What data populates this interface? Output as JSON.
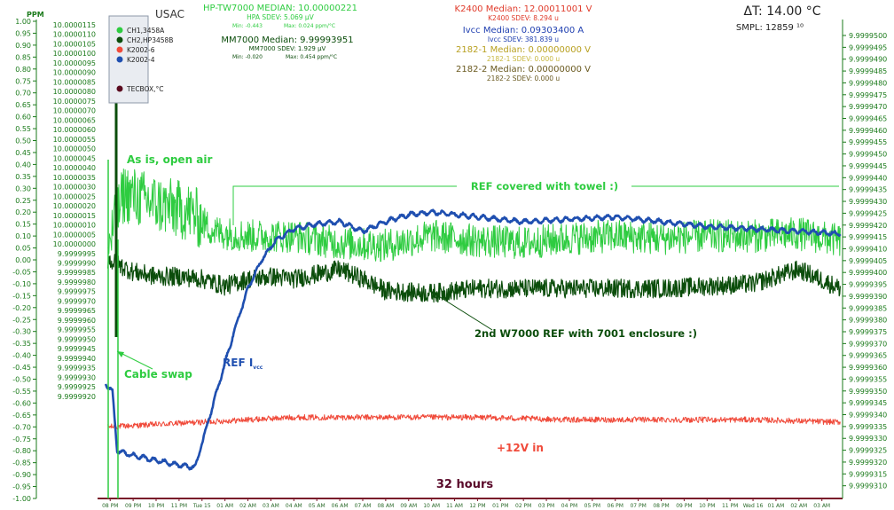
{
  "chart_data": {
    "type": "line",
    "x": {
      "ticks": [
        "08 PM",
        "09 PM",
        "10 PM",
        "11 PM",
        "Tue 15",
        "01 AM",
        "02 AM",
        "03 AM",
        "04 AM",
        "05 AM",
        "06 AM",
        "07 AM",
        "08 AM",
        "09 AM",
        "10 AM",
        "11 AM",
        "12 PM",
        "01 PM",
        "02 PM",
        "03 PM",
        "04 PM",
        "05 PM",
        "06 PM",
        "07 PM",
        "08 PM",
        "09 PM",
        "10 PM",
        "11 PM",
        "Wed 16",
        "01 AM",
        "02 AM",
        "03 AM"
      ],
      "range_hours": [
        -0.55,
        31.9
      ],
      "label": "32 hours"
    },
    "y_left": {
      "unit": "PPM",
      "ticks": [
        "1.00",
        "0.95",
        "0.90",
        "0.85",
        "0.80",
        "0.75",
        "0.70",
        "0.65",
        "0.60",
        "0.55",
        "0.50",
        "0.45",
        "0.40",
        "0.35",
        "0.30",
        "0.25",
        "0.20",
        "0.15",
        "0.10",
        "0.05",
        "0.00",
        "-0.05",
        "-0.10",
        "-0.15",
        "-0.20",
        "-0.25",
        "-0.30",
        "-0.35",
        "-0.40",
        "-0.45",
        "-0.50",
        "-0.55",
        "-0.60",
        "-0.65",
        "-0.70",
        "-0.75",
        "-0.80",
        "-0.85",
        "-0.90",
        "-0.95",
        "-1.00"
      ],
      "range": [
        -1.0,
        1.0
      ]
    },
    "y_mid": {
      "ticks": [
        "10.0000115",
        "10.0000110",
        "10.0000105",
        "10.0000100",
        "10.0000095",
        "10.0000090",
        "10.0000085",
        "10.0000080",
        "10.0000075",
        "10.0000070",
        "10.0000065",
        "10.0000060",
        "10.0000055",
        "10.0000050",
        "10.0000045",
        "10.0000040",
        "10.0000035",
        "10.0000030",
        "10.0000025",
        "10.0000020",
        "10.0000015",
        "10.0000010",
        "10.0000005",
        "10.0000000",
        "9.9999995",
        "9.9999990",
        "9.9999985",
        "9.9999980",
        "9.9999975",
        "9.9999970",
        "9.9999965",
        "9.9999960",
        "9.9999955",
        "9.9999950",
        "9.9999945",
        "9.9999940",
        "9.9999935",
        "9.9999930",
        "9.9999925",
        "9.9999920"
      ]
    },
    "y_right": {
      "ticks": [
        "9.9999500",
        "9.9999495",
        "9.9999490",
        "9.9999485",
        "9.9999480",
        "9.9999475",
        "9.9999470",
        "9.9999465",
        "9.9999460",
        "9.9999455",
        "9.9999450",
        "9.9999445",
        "9.9999440",
        "9.9999435",
        "9.9999430",
        "9.9999425",
        "9.9999420",
        "9.9999415",
        "9.9999410",
        "9.9999405",
        "9.9999400",
        "9.9999395",
        "9.9999390",
        "9.9999385",
        "9.9999380",
        "9.9999375",
        "9.9999370",
        "9.9999365",
        "9.9999360",
        "9.9999355",
        "9.9999350",
        "9.9999345",
        "9.9999340",
        "9.9999335",
        "9.9999330",
        "9.9999325",
        "9.9999320",
        "9.9999315",
        "9.9999310"
      ]
    },
    "series": [
      {
        "name": "CH1,3458A",
        "color": "#2ecc40",
        "ppm_points": [
          [
            -0.1,
            0.05
          ],
          [
            0.6,
            0.28
          ],
          [
            1.5,
            0.25
          ],
          [
            2.5,
            0.22
          ],
          [
            3.5,
            0.2
          ],
          [
            4.5,
            0.12
          ],
          [
            6,
            0.1
          ],
          [
            8,
            0.1
          ],
          [
            10,
            0.07
          ],
          [
            12,
            0.06
          ],
          [
            14,
            0.1
          ],
          [
            16,
            0.08
          ],
          [
            18,
            0.07
          ],
          [
            20,
            0.09
          ],
          [
            22,
            0.1
          ],
          [
            24,
            0.09
          ],
          [
            26,
            0.1
          ],
          [
            28,
            0.1
          ],
          [
            30,
            0.11
          ],
          [
            31.8,
            0.08
          ]
        ]
      },
      {
        "name": "CH2,HP3458B",
        "color": "#0b4d0b",
        "ppm_points": [
          [
            -0.1,
            0.0
          ],
          [
            1,
            -0.05
          ],
          [
            2,
            -0.07
          ],
          [
            3,
            -0.07
          ],
          [
            4,
            -0.08
          ],
          [
            5,
            -0.11
          ],
          [
            6,
            -0.08
          ],
          [
            7,
            -0.07
          ],
          [
            8,
            -0.08
          ],
          [
            10,
            -0.04
          ],
          [
            11,
            -0.08
          ],
          [
            12,
            -0.13
          ],
          [
            14,
            -0.14
          ],
          [
            16,
            -0.12
          ],
          [
            18,
            -0.12
          ],
          [
            20,
            -0.12
          ],
          [
            22,
            -0.12
          ],
          [
            24,
            -0.12
          ],
          [
            26,
            -0.11
          ],
          [
            28,
            -0.1
          ],
          [
            30,
            -0.04
          ],
          [
            31.8,
            -0.12
          ]
        ]
      },
      {
        "name": "K2002-6",
        "color": "#f04a3a",
        "ppm_points": [
          [
            -0.1,
            -0.7
          ],
          [
            4,
            -0.68
          ],
          [
            8,
            -0.66
          ],
          [
            12,
            -0.66
          ],
          [
            16,
            -0.66
          ],
          [
            20,
            -0.67
          ],
          [
            24,
            -0.67
          ],
          [
            28,
            -0.67
          ],
          [
            31.8,
            -0.68
          ]
        ]
      },
      {
        "name": "K2002-4",
        "color": "#1f4fb0",
        "ppm_points": [
          [
            -0.2,
            -0.52
          ],
          [
            0.1,
            -0.55
          ],
          [
            0.3,
            -0.8
          ],
          [
            1,
            -0.82
          ],
          [
            2,
            -0.84
          ],
          [
            3,
            -0.86
          ],
          [
            3.7,
            -0.87
          ],
          [
            4.2,
            -0.7
          ],
          [
            4.8,
            -0.5
          ],
          [
            5.4,
            -0.3
          ],
          [
            6,
            -0.12
          ],
          [
            6.6,
            0.0
          ],
          [
            7.2,
            0.08
          ],
          [
            8,
            0.13
          ],
          [
            9,
            0.15
          ],
          [
            10,
            0.16
          ],
          [
            11,
            0.12
          ],
          [
            12,
            0.16
          ],
          [
            13,
            0.19
          ],
          [
            14,
            0.2
          ],
          [
            15,
            0.19
          ],
          [
            16,
            0.18
          ],
          [
            18,
            0.16
          ],
          [
            20,
            0.17
          ],
          [
            22,
            0.18
          ],
          [
            24,
            0.16
          ],
          [
            26,
            0.14
          ],
          [
            28,
            0.13
          ],
          [
            30,
            0.12
          ],
          [
            31.8,
            0.11
          ]
        ]
      },
      {
        "name": "TECBOX,°C",
        "color": "#5a0a1e"
      }
    ]
  },
  "header": {
    "usac": "USAC",
    "hp_median": "HP-TW7000 MEDIAN: 10.00000221",
    "hp_sdev": "HPA SDEV: 5.069 µV",
    "hp_min": "Min: -0.443",
    "hp_max": "Max: 0.024 ppm/°C",
    "mm_median": "MM7000 Median: 9.99993951",
    "mm_sdev": "MM7000 SDEV: 1.929 µV",
    "mm_min": "Min: -0.020",
    "mm_max": "Max: 0.454 ppm/°C",
    "k2400_median": "K2400 Median: 12.00011001 V",
    "k2400_sdev": "K2400 SDEV: 8.294 u",
    "ivcc_median": "Ivcc Median: 0.09303400 A",
    "ivcc_sdev": "Ivcc SDEV: 381.839 u",
    "k2182_1_median": "2182-1 Median: 0.00000000 V",
    "k2182_1_sdev": "2182-1 SDEV: 0.000 u",
    "k2182_2_median": "2182-2 Median: 0.00000000 V",
    "k2182_2_sdev": "2182-2 SDEV: 0.000 u",
    "delta_t": "ΔT: 14.00 °C",
    "smpl": "SMPL: 12859 ¹⁰"
  },
  "annotations": {
    "open_air": "As is, open air",
    "ref_covered": "REF covered with towel :)",
    "second_ref": "2nd W7000 REF with 7001 enclosure :)",
    "cable_swap": "Cable swap",
    "ref_icc_main": "REF I",
    "ref_icc_sub": "vcc",
    "plus12": "+12V in",
    "duration": "32 hours"
  },
  "colors": {
    "axis_green": "#1a7a1a",
    "ch1": "#2ecc40",
    "ch2": "#0b4d0b",
    "k2002_6": "#f04a3a",
    "k2002_4": "#1f4fb0",
    "tecbox": "#5a0a1e",
    "title_green": "#2ecc40",
    "title_red": "#e03a2a",
    "title_blue": "#1f3fb0",
    "title_olive": "#b8a020"
  }
}
